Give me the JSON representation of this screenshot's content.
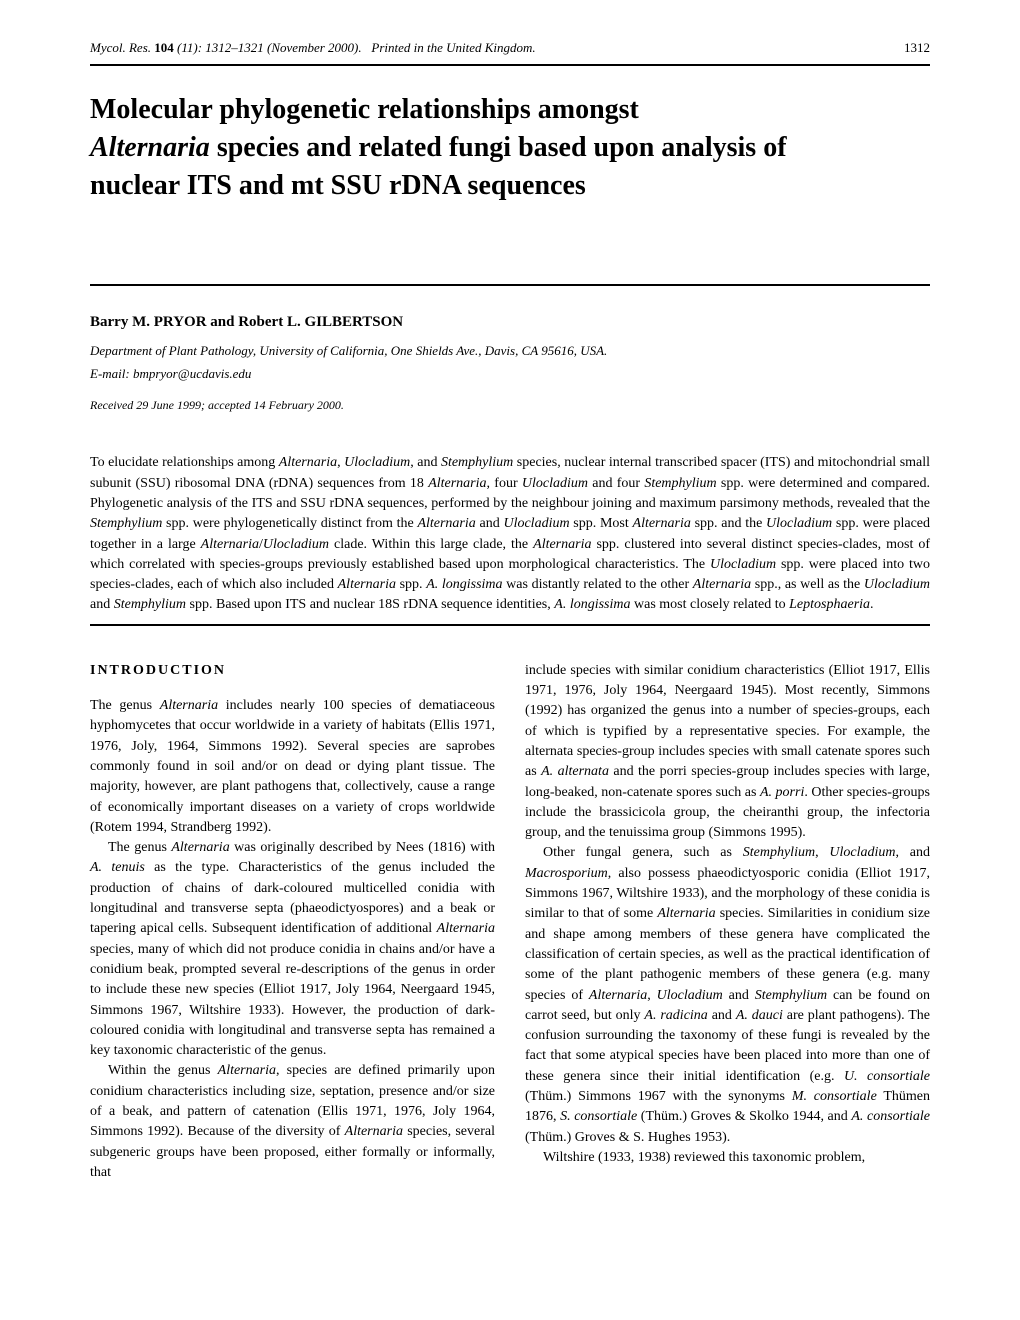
{
  "header": {
    "journal": "Mycol. Res.",
    "volume": "104",
    "issue": "(11): 1312–1321 (November 2000).",
    "printed": "Printed in the United Kingdom.",
    "page": "1312"
  },
  "title": {
    "line1": "Molecular phylogenetic relationships amongst",
    "line2_italic": "Alternaria",
    "line2_rest": " species and related fungi based upon analysis of",
    "line3": "nuclear ITS and mt SSU rDNA sequences"
  },
  "authors": "Barry M. PRYOR and Robert L. GILBERTSON",
  "affiliation": "Department of Plant Pathology, University of California, One Shields Ave., Davis, CA 95616, USA.",
  "email": "E-mail: bmpryor@ucdavis.edu",
  "received": "Received 29 June 1999; accepted 14 February 2000.",
  "abstract": "To elucidate relationships among <em>Alternaria</em>, <em>Ulocladium</em>, and <em>Stemphylium</em> species, nuclear internal transcribed spacer (ITS) and mitochondrial small subunit (SSU) ribosomal DNA (rDNA) sequences from 18 <em>Alternaria</em>, four <em>Ulocladium</em> and four <em>Stemphylium</em> spp. were determined and compared. Phylogenetic analysis of the ITS and SSU rDNA sequences, performed by the neighbour joining and maximum parsimony methods, revealed that the <em>Stemphylium</em> spp. were phylogenetically distinct from the <em>Alternaria</em> and <em>Ulocladium</em> spp. Most <em>Alternaria</em> spp. and the <em>Ulocladium</em> spp. were placed together in a large <em>Alternaria</em>/<em>Ulocladium</em> clade. Within this large clade, the <em>Alternaria</em> spp. clustered into several distinct species-clades, most of which correlated with species-groups previously established based upon morphological characteristics. The <em>Ulocladium</em> spp. were placed into two species-clades, each of which also included <em>Alternaria</em> spp. <em>A. longissima</em> was distantly related to the other <em>Alternaria</em> spp., as well as the <em>Ulocladium</em> and <em>Stemphylium</em> spp. Based upon ITS and nuclear 18S rDNA sequence identities, <em>A. longissima</em> was most closely related to <em>Leptosphaeria</em>.",
  "section_heading": "INTRODUCTION",
  "col1": {
    "p1": "The genus <em>Alternaria</em> includes nearly 100 species of dematiaceous hyphomycetes that occur worldwide in a variety of habitats (Ellis 1971, 1976, Joly, 1964, Simmons 1992). Several species are saprobes commonly found in soil and/or on dead or dying plant tissue. The majority, however, are plant pathogens that, collectively, cause a range of economically important diseases on a variety of crops worldwide (Rotem 1994, Strandberg 1992).",
    "p2": "The genus <em>Alternaria</em> was originally described by Nees (1816) with <em>A. tenuis</em> as the type. Characteristics of the genus included the production of chains of dark-coloured multicelled conidia with longitudinal and transverse septa (phaeodictyospores) and a beak or tapering apical cells. Subsequent identification of additional <em>Alternaria</em> species, many of which did not produce conidia in chains and/or have a conidium beak, prompted several re-descriptions of the genus in order to include these new species (Elliot 1917, Joly 1964, Neergaard 1945, Simmons 1967, Wiltshire 1933). However, the production of dark-coloured conidia with longitudinal and transverse septa has remained a key taxonomic characteristic of the genus.",
    "p3": "Within the genus <em>Alternaria</em>, species are defined primarily upon conidium characteristics including size, septation, presence and/or size of a beak, and pattern of catenation (Ellis 1971, 1976, Joly 1964, Simmons 1992). Because of the diversity of <em>Alternaria</em> species, several subgeneric groups have been proposed, either formally or informally, that"
  },
  "col2": {
    "p1": "include species with similar conidium characteristics (Elliot 1917, Ellis 1971, 1976, Joly 1964, Neergaard 1945). Most recently, Simmons (1992) has organized the genus into a number of species-groups, each of which is typified by a representative species. For example, the alternata species-group includes species with small catenate spores such as <em>A. alternata</em> and the porri species-group includes species with large, long-beaked, non-catenate spores such as <em>A. porri</em>. Other species-groups include the brassicicola group, the cheiranthi group, the infectoria group, and the tenuissima group (Simmons 1995).",
    "p2": "Other fungal genera, such as <em>Stemphylium</em>, <em>Ulocladium</em>, and <em>Macrosporium</em>, also possess phaeodictyosporic conidia (Elliot 1917, Simmons 1967, Wiltshire 1933), and the morphology of these conidia is similar to that of some <em>Alternaria</em> species. Similarities in conidium size and shape among members of these genera have complicated the classification of certain species, as well as the practical identification of some of the plant pathogenic members of these genera (e.g. many species of <em>Alternaria</em>, <em>Ulocladium</em> and <em>Stemphylium</em> can be found on carrot seed, but only <em>A. radicina</em> and <em>A. dauci</em> are plant pathogens). The confusion surrounding the taxonomy of these fungi is revealed by the fact that some atypical species have been placed into more than one of these genera since their initial identification (e.g. <em>U. consortiale</em> (Thüm.) Simmons 1967 with the synonyms <em>M. consortiale</em> Thümen 1876, <em>S. consortiale</em> (Thüm.) Groves & Skolko 1944, and <em>A. consortiale</em> (Thüm.) Groves & S. Hughes 1953).",
    "p3": "Wiltshire (1933, 1938) reviewed this taxonomic problem,"
  }
}
